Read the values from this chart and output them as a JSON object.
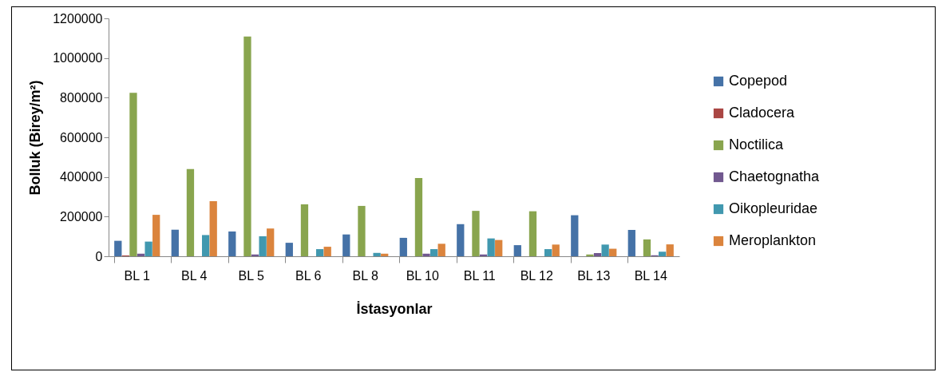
{
  "chart_data": {
    "type": "bar",
    "xlabel": "İstasyonlar",
    "ylabel": "Bolluk (Birey/m²)",
    "categories": [
      "BL 1",
      "BL 4",
      "BL 5",
      "BL 6",
      "BL 8",
      "BL 10",
      "BL 11",
      "BL 12",
      "BL 13",
      "BL 14"
    ],
    "series": [
      {
        "name": "Copepod",
        "color": "#4572a7",
        "values": [
          78000,
          134000,
          125000,
          68000,
          110000,
          93000,
          162000,
          56000,
          207000,
          133000
        ]
      },
      {
        "name": "Cladocera",
        "color": "#aa4643",
        "values": [
          4000,
          null,
          0,
          0,
          0,
          0,
          0,
          0,
          0,
          0
        ]
      },
      {
        "name": "Noctilica",
        "color": "#89a54e",
        "values": [
          824000,
          440000,
          1108000,
          262000,
          254000,
          395000,
          229000,
          227000,
          9000,
          85000
        ]
      },
      {
        "name": "Chaetognatha",
        "color": "#71588f",
        "values": [
          13000,
          null,
          9000,
          0,
          null,
          13000,
          9000,
          0,
          16000,
          5000
        ]
      },
      {
        "name": "Oikopleuridae",
        "color": "#4198af",
        "values": [
          74000,
          107000,
          101000,
          36000,
          17000,
          36000,
          90000,
          36000,
          59000,
          23000
        ]
      },
      {
        "name": "Meroplankton",
        "color": "#db843d",
        "values": [
          209000,
          278000,
          140000,
          48000,
          13000,
          63000,
          82000,
          59000,
          38000,
          60000
        ]
      }
    ],
    "ylim": [
      0,
      1200000
    ],
    "yticks": [
      0,
      200000,
      400000,
      600000,
      800000,
      1000000,
      1200000
    ],
    "grid": false,
    "legend": "right"
  }
}
